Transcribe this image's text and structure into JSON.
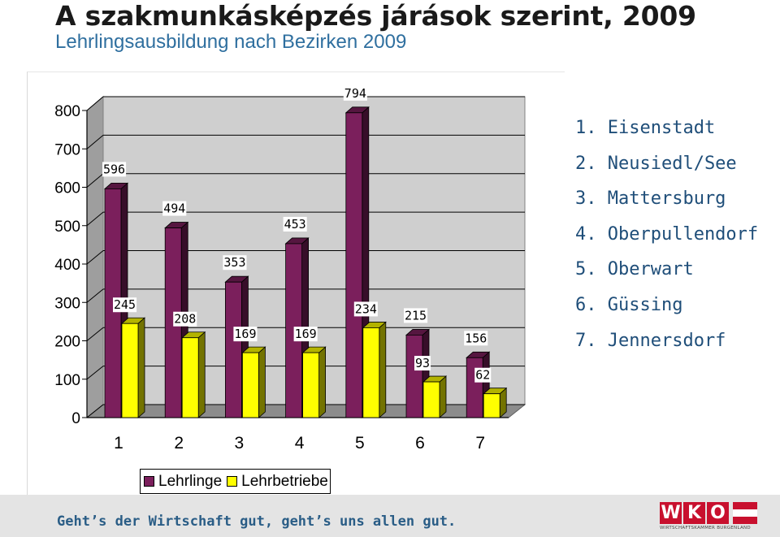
{
  "header": {
    "title": "A szakmunkásképzés járások szerint, 2009",
    "subtitle": "Lehrlingsausbildung nach Bezirken 2009"
  },
  "districts": [
    "1. Eisenstadt",
    "2. Neusiedl/See",
    "3. Mattersburg",
    "4. Oberpullendorf",
    "5. Oberwart",
    "6. Güssing",
    "7. Jennersdorf"
  ],
  "footer": {
    "slogan": "Geht’s der Wirtschaft gut, geht’s uns allen gut.",
    "logo_text": "WKO",
    "logo_sub": "WIRTSCHAFTSKAMMER BURGENLAND"
  },
  "colors": {
    "lehrlinge": "#7b1f5c",
    "lehrbetriebe": "#ffff00",
    "logo_red": "#c8102e"
  },
  "chart_data": {
    "type": "bar",
    "categories": [
      "1",
      "2",
      "3",
      "4",
      "5",
      "6",
      "7"
    ],
    "series": [
      {
        "name": "Lehrlinge",
        "values": [
          596,
          494,
          353,
          453,
          794,
          215,
          156
        ]
      },
      {
        "name": "Lehrbetriebe",
        "values": [
          245,
          208,
          169,
          169,
          234,
          93,
          62
        ]
      }
    ],
    "ylim": [
      0,
      800
    ],
    "yticks": [
      0,
      100,
      200,
      300,
      400,
      500,
      600,
      700,
      800
    ],
    "grid": true,
    "legend": "bottom",
    "style": "3d"
  }
}
